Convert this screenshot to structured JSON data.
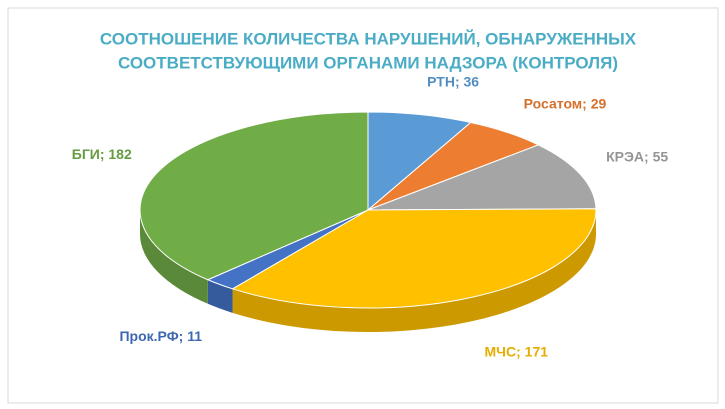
{
  "chart_data": {
    "type": "pie",
    "title": [
      "СООТНОШЕНИЕ КОЛИЧЕСТВА НАРУШЕНИЙ, ОБНАРУЖЕННЫХ",
      "СООТВЕТСТВУЮЩИМИ ОРГАНАМИ НАДЗОРА (КОНТРОЛЯ)"
    ],
    "values": [
      36,
      29,
      55,
      171,
      11,
      182
    ],
    "value_labels": [
      "РТН; 36",
      "Росатом; 29",
      "КРЭА; 55",
      "МЧС; 171",
      "Прок.РФ; 11",
      "БГИ; 182"
    ],
    "colors": [
      "#5b9bd5",
      "#ed7d31",
      "#a5a5a5",
      "#ffc000",
      "#4472c4",
      "#70ad47"
    ]
  }
}
